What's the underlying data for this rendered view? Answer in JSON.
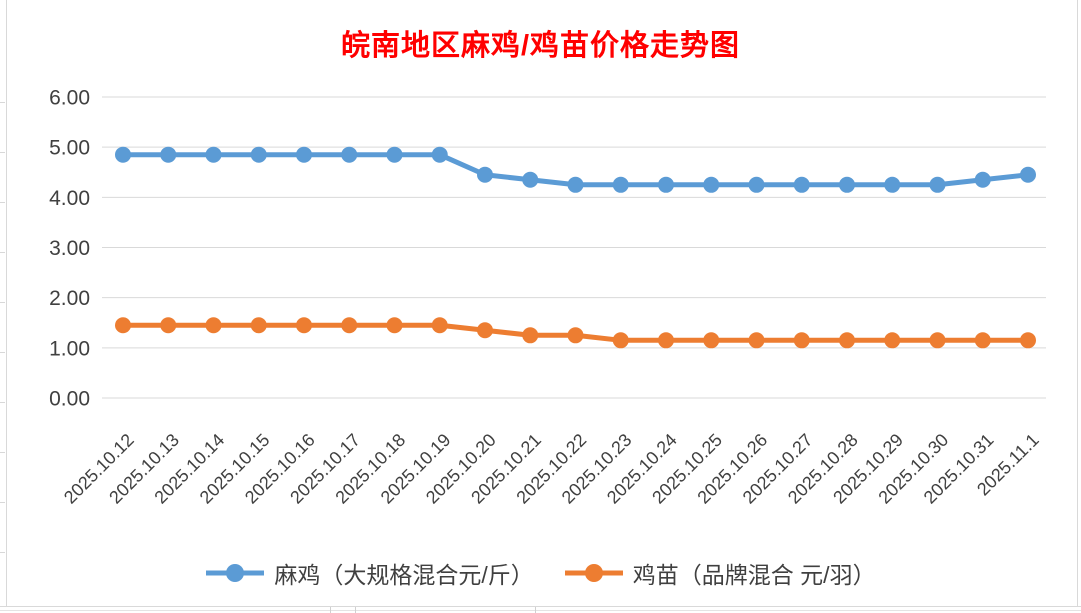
{
  "palette": {
    "title_red": "#FF0000",
    "series_blue": "#5B9BD5",
    "series_orange": "#ED7D31",
    "gridline": "#D9D9D9",
    "axis_text": "#404040",
    "frame": "#D9D9D9"
  },
  "chart_data": {
    "type": "line",
    "title": "皖南地区麻鸡/鸡苗价格走势图",
    "categories": [
      "2025.10.12",
      "2025.10.13",
      "2025.10.14",
      "2025.10.15",
      "2025.10.16",
      "2025.10.17",
      "2025.10.18",
      "2025.10.19",
      "2025.10.20",
      "2025.10.21",
      "2025.10.22",
      "2025.10.23",
      "2025.10.24",
      "2025.10.25",
      "2025.10.26",
      "2025.10.27",
      "2025.10.28",
      "2025.10.29",
      "2025.10.30",
      "2025.10.31",
      "2025.11.1"
    ],
    "series": [
      {
        "name": "麻鸡（大规格混合元/斤）",
        "color": "#5B9BD5",
        "values": [
          4.85,
          4.85,
          4.85,
          4.85,
          4.85,
          4.85,
          4.85,
          4.85,
          4.45,
          4.35,
          4.25,
          4.25,
          4.25,
          4.25,
          4.25,
          4.25,
          4.25,
          4.25,
          4.25,
          4.35,
          4.45
        ]
      },
      {
        "name": "鸡苗（品牌混合 元/羽）",
        "color": "#ED7D31",
        "values": [
          1.45,
          1.45,
          1.45,
          1.45,
          1.45,
          1.45,
          1.45,
          1.45,
          1.35,
          1.25,
          1.25,
          1.15,
          1.15,
          1.15,
          1.15,
          1.15,
          1.15,
          1.15,
          1.15,
          1.15,
          1.15
        ]
      }
    ],
    "ylim": [
      0,
      6
    ],
    "ytick_step": 1,
    "yticks": [
      "6.00",
      "5.00",
      "4.00",
      "3.00",
      "2.00",
      "1.00",
      "0.00"
    ],
    "xlabel": "",
    "ylabel": "",
    "grid": true,
    "legend_position": "bottom",
    "x_label_rotation": -45,
    "marker": "circle"
  }
}
